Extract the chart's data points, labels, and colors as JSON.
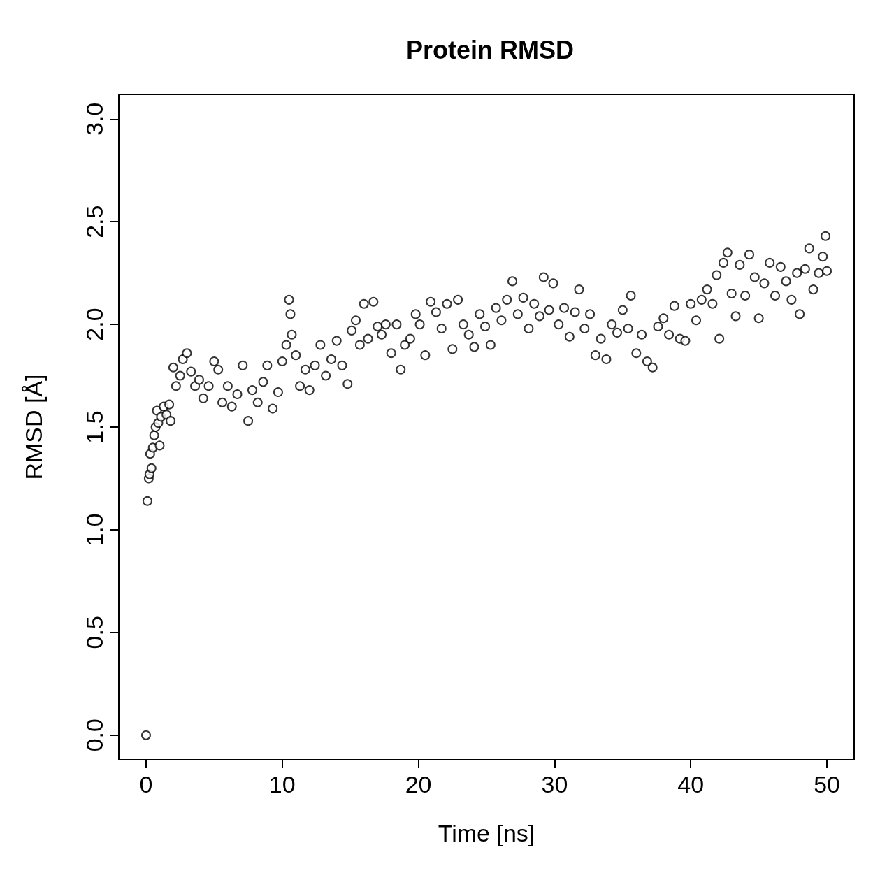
{
  "chart_data": {
    "type": "scatter",
    "title": "Protein RMSD",
    "xlabel": "Time [ns]",
    "ylabel": "RMSD [Å]",
    "marker": "circle",
    "grid": false,
    "xlim": [
      -2,
      52
    ],
    "xticks": [
      0,
      10,
      20,
      30,
      40,
      50
    ],
    "ylim": [
      -0.12,
      3.12
    ],
    "yticks": [
      {
        "value": 0,
        "label": "0.0"
      },
      {
        "value": 0.5,
        "label": "0.5"
      },
      {
        "value": 1,
        "label": "1.0"
      },
      {
        "value": 1.5,
        "label": "1.5"
      },
      {
        "value": 2,
        "label": "2.0"
      },
      {
        "value": 2.5,
        "label": "2.5"
      },
      {
        "value": 3,
        "label": "3.0"
      }
    ],
    "series": [
      {
        "color": "#000000",
        "x": [
          0,
          0.1,
          0.2,
          0.25,
          0.3,
          0.4,
          0.5,
          0.6,
          0.7,
          0.8,
          0.9,
          1.0,
          1.1,
          1.3,
          1.5,
          1.7,
          1.8,
          2.0,
          2.2,
          2.5,
          2.7,
          3.0,
          3.3,
          3.6,
          3.9,
          4.2,
          4.6,
          5.0,
          5.3,
          5.6,
          6.0,
          6.3,
          6.7,
          7.1,
          7.5,
          7.8,
          8.2,
          8.6,
          8.9,
          9.3,
          9.7,
          10.0,
          10.3,
          10.5,
          10.6,
          10.7,
          11.0,
          11.3,
          11.7,
          12.0,
          12.4,
          12.8,
          13.2,
          13.6,
          14.0,
          14.4,
          14.8,
          15.1,
          15.4,
          15.7,
          16.0,
          16.3,
          16.7,
          17.0,
          17.3,
          17.6,
          18.0,
          18.4,
          18.7,
          19.0,
          19.4,
          19.8,
          20.1,
          20.5,
          20.9,
          21.3,
          21.7,
          22.1,
          22.5,
          22.9,
          23.3,
          23.7,
          24.1,
          24.5,
          24.9,
          25.3,
          25.7,
          26.1,
          26.5,
          26.9,
          27.3,
          27.7,
          28.1,
          28.5,
          28.9,
          29.2,
          29.6,
          29.9,
          30.3,
          30.7,
          31.1,
          31.5,
          31.8,
          32.2,
          32.6,
          33.0,
          33.4,
          33.8,
          34.2,
          34.6,
          35.0,
          35.4,
          35.6,
          36.0,
          36.4,
          36.8,
          37.2,
          37.6,
          38.0,
          38.4,
          38.8,
          39.2,
          39.6,
          40.0,
          40.4,
          40.8,
          41.2,
          41.6,
          41.9,
          42.1,
          42.4,
          42.7,
          43.0,
          43.3,
          43.6,
          44.0,
          44.3,
          44.7,
          45.0,
          45.4,
          45.8,
          46.2,
          46.6,
          47.0,
          47.4,
          47.8,
          48.0,
          48.4,
          48.7,
          49.0,
          49.4,
          49.7,
          49.9,
          50.0
        ],
        "values": [
          0,
          1.14,
          1.25,
          1.27,
          1.37,
          1.3,
          1.4,
          1.46,
          1.5,
          1.58,
          1.52,
          1.41,
          1.55,
          1.6,
          1.56,
          1.61,
          1.53,
          1.79,
          1.7,
          1.75,
          1.83,
          1.86,
          1.77,
          1.7,
          1.73,
          1.64,
          1.7,
          1.82,
          1.78,
          1.62,
          1.7,
          1.6,
          1.66,
          1.8,
          1.53,
          1.68,
          1.62,
          1.72,
          1.8,
          1.59,
          1.67,
          1.82,
          1.9,
          2.12,
          2.05,
          1.95,
          1.85,
          1.7,
          1.78,
          1.68,
          1.8,
          1.9,
          1.75,
          1.83,
          1.92,
          1.8,
          1.71,
          1.97,
          2.02,
          1.9,
          2.1,
          1.93,
          2.11,
          1.99,
          1.95,
          2.0,
          1.86,
          2.0,
          1.78,
          1.9,
          1.93,
          2.05,
          2.0,
          1.85,
          2.11,
          2.06,
          1.98,
          2.1,
          1.88,
          2.12,
          2.0,
          1.95,
          1.89,
          2.05,
          1.99,
          1.9,
          2.08,
          2.02,
          2.12,
          2.21,
          2.05,
          2.13,
          1.98,
          2.1,
          2.04,
          2.23,
          2.07,
          2.2,
          2.0,
          2.08,
          1.94,
          2.06,
          2.17,
          1.98,
          2.05,
          1.85,
          1.93,
          1.83,
          2.0,
          1.96,
          2.07,
          1.98,
          2.14,
          1.86,
          1.95,
          1.82,
          1.79,
          1.99,
          2.03,
          1.95,
          2.09,
          1.93,
          1.92,
          2.1,
          2.02,
          2.12,
          2.17,
          2.1,
          2.24,
          1.93,
          2.3,
          2.35,
          2.15,
          2.04,
          2.29,
          2.14,
          2.34,
          2.23,
          2.03,
          2.2,
          2.3,
          2.14,
          2.28,
          2.21,
          2.12,
          2.25,
          2.05,
          2.27,
          2.37,
          2.17,
          2.25,
          2.33,
          2.43,
          2.26
        ]
      }
    ]
  }
}
